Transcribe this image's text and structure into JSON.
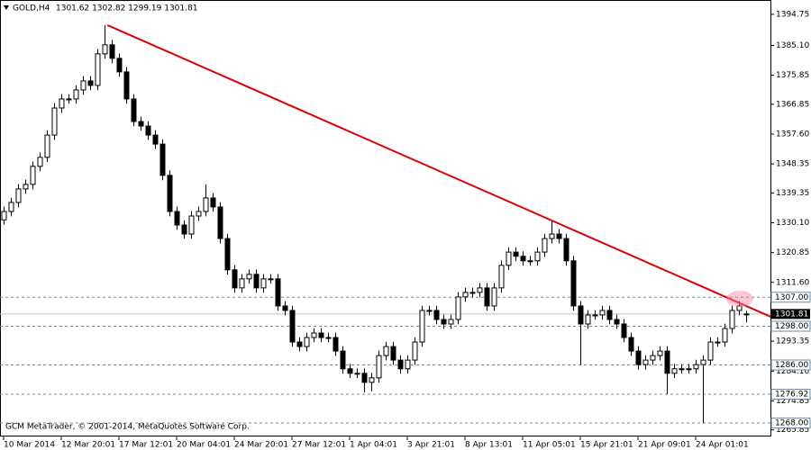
{
  "chart_data": {
    "type": "candlestick",
    "title": "GOLD,H4",
    "subtitle": "1301.62 1302.82 1299.19 1301.81",
    "footer": "GCM MetaTrader, © 2001-2014, MetaQuotes Software Corp.",
    "categories": [
      "10 Mar 2014",
      null,
      null,
      null,
      null,
      null,
      null,
      null,
      "12 Mar 20:01",
      null,
      null,
      null,
      null,
      null,
      null,
      null,
      "17 Mar 12:01",
      null,
      null,
      null,
      null,
      null,
      null,
      null,
      "20 Mar 04:01",
      null,
      null,
      null,
      null,
      null,
      null,
      null,
      "24 Mar 20:01",
      null,
      null,
      null,
      null,
      null,
      null,
      null,
      "27 Mar 12:01",
      null,
      null,
      null,
      null,
      null,
      null,
      null,
      "1 Apr 04:01",
      null,
      null,
      null,
      null,
      null,
      null,
      null,
      "3 Apr 21:01",
      null,
      null,
      null,
      null,
      null,
      null,
      null,
      "8 Apr 13:01",
      null,
      null,
      null,
      null,
      null,
      null,
      null,
      "11 Apr 05:01",
      null,
      null,
      null,
      null,
      null,
      null,
      null,
      "15 Apr 21:01",
      null,
      null,
      null,
      null,
      null,
      null,
      null,
      "21 Apr 09:01",
      null,
      null,
      null,
      null,
      null,
      null,
      null,
      "24 Apr 01:01",
      null,
      null,
      null,
      null,
      null,
      null,
      null
    ],
    "open": [
      1331.0,
      1333.6,
      1336.4,
      1340.6,
      1342.0,
      1347.6,
      1350.4,
      1357.3,
      1365.7,
      1368.5,
      1368.5,
      1371.3,
      1374.1,
      1372.7,
      1382.5,
      1385.3,
      1381.1,
      1376.9,
      1368.5,
      1361.5,
      1360.1,
      1357.3,
      1354.5,
      1344.8,
      1333.6,
      1329.4,
      1326.6,
      1332.2,
      1333.6,
      1337.8,
      1335.0,
      1325.2,
      1315.5,
      1309.9,
      1312.7,
      1314.1,
      1309.9,
      1312.7,
      1312.7,
      1304.3,
      1302.9,
      1293.1,
      1291.7,
      1294.5,
      1295.9,
      1294.5,
      1294.5,
      1290.3,
      1284.8,
      1283.4,
      1283.4,
      1280.6,
      1282.0,
      1288.9,
      1291.7,
      1287.5,
      1284.8,
      1287.5,
      1293.1,
      1302.9,
      1302.9,
      1300.1,
      1298.7,
      1300.1,
      1307.1,
      1308.5,
      1308.5,
      1309.9,
      1304.3,
      1309.9,
      1316.9,
      1321.0,
      1319.7,
      1318.3,
      1318.3,
      1321.0,
      1325.2,
      1326.6,
      1325.2,
      1318.3,
      1304.3,
      1298.7,
      1301.5,
      1301.5,
      1302.9,
      1300.1,
      1298.7,
      1294.5,
      1290.3,
      1286.1,
      1287.5,
      1288.9,
      1290.3,
      1283.4,
      1284.8,
      1284.8,
      1284.8,
      1286.1,
      1287.5,
      1293.1,
      1293.1,
      1297.3,
      1302.9,
      1301.62
    ],
    "high": [
      1335.1,
      1337.9,
      1342.1,
      1343.5,
      1349.1,
      1351.9,
      1358.8,
      1367.2,
      1370.0,
      1370.0,
      1372.8,
      1375.6,
      1375.6,
      1384.0,
      1391.4,
      1386.8,
      1382.6,
      1378.4,
      1370.0,
      1363.0,
      1361.6,
      1358.8,
      1356.0,
      1346.3,
      1335.1,
      1330.9,
      1333.7,
      1335.1,
      1342.0,
      1339.3,
      1336.5,
      1326.7,
      1317.0,
      1314.2,
      1315.6,
      1315.6,
      1314.2,
      1314.2,
      1314.2,
      1305.8,
      1304.4,
      1294.6,
      1296.0,
      1297.4,
      1297.4,
      1296.0,
      1296.0,
      1291.8,
      1286.3,
      1284.9,
      1284.9,
      1283.5,
      1290.4,
      1293.2,
      1293.2,
      1289.0,
      1289.0,
      1294.6,
      1304.4,
      1304.4,
      1304.4,
      1301.6,
      1301.6,
      1308.6,
      1310.0,
      1310.0,
      1311.4,
      1311.4,
      1311.4,
      1318.4,
      1322.5,
      1322.5,
      1321.2,
      1319.8,
      1322.5,
      1326.7,
      1330.5,
      1328.1,
      1326.7,
      1319.8,
      1305.8,
      1303.0,
      1303.0,
      1304.4,
      1304.4,
      1301.6,
      1300.2,
      1296.0,
      1291.8,
      1289.0,
      1290.4,
      1291.8,
      1291.8,
      1286.3,
      1286.3,
      1286.3,
      1287.6,
      1289.0,
      1294.6,
      1294.6,
      1298.8,
      1304.4,
      1305.8,
      1302.82
    ],
    "low": [
      1329.5,
      1332.1,
      1334.9,
      1339.1,
      1340.5,
      1346.1,
      1348.9,
      1355.8,
      1364.2,
      1367.0,
      1367.0,
      1369.8,
      1371.2,
      1371.2,
      1381.0,
      1379.6,
      1375.4,
      1367.0,
      1360.0,
      1358.6,
      1355.8,
      1353.0,
      1343.3,
      1332.1,
      1327.9,
      1325.1,
      1325.1,
      1330.7,
      1332.1,
      1333.5,
      1323.7,
      1314.0,
      1308.4,
      1308.4,
      1311.2,
      1308.4,
      1308.4,
      1311.2,
      1302.8,
      1301.4,
      1291.6,
      1290.2,
      1290.2,
      1293.0,
      1293.0,
      1293.0,
      1288.8,
      1283.3,
      1281.9,
      1281.9,
      1277.5,
      1277.8,
      1280.5,
      1287.4,
      1286.0,
      1283.3,
      1283.3,
      1286.0,
      1291.6,
      1301.4,
      1298.6,
      1297.2,
      1297.2,
      1298.6,
      1305.6,
      1307.0,
      1307.0,
      1302.8,
      1302.8,
      1308.4,
      1315.4,
      1318.2,
      1316.8,
      1316.8,
      1316.8,
      1319.5,
      1323.7,
      1323.7,
      1316.8,
      1302.8,
      1286.0,
      1297.2,
      1300.0,
      1300.0,
      1298.6,
      1297.2,
      1293.0,
      1288.8,
      1284.6,
      1284.6,
      1286.0,
      1287.4,
      1277.0,
      1281.9,
      1283.3,
      1283.3,
      1283.3,
      1268.0,
      1286.0,
      1291.6,
      1291.6,
      1295.8,
      1301.4,
      1299.19
    ],
    "close": [
      1333.6,
      1336.4,
      1340.6,
      1342.0,
      1347.6,
      1350.4,
      1357.3,
      1365.7,
      1368.5,
      1368.5,
      1371.3,
      1374.1,
      1372.7,
      1382.5,
      1385.3,
      1381.1,
      1376.9,
      1368.5,
      1361.5,
      1360.1,
      1357.3,
      1354.5,
      1344.8,
      1333.6,
      1329.4,
      1326.6,
      1332.2,
      1333.6,
      1337.8,
      1335.0,
      1325.2,
      1315.5,
      1309.9,
      1312.7,
      1314.1,
      1309.9,
      1312.7,
      1312.7,
      1304.3,
      1302.9,
      1293.1,
      1291.7,
      1294.5,
      1295.9,
      1294.5,
      1294.5,
      1290.3,
      1284.8,
      1283.4,
      1283.4,
      1280.6,
      1282.0,
      1288.9,
      1291.7,
      1287.5,
      1284.8,
      1287.5,
      1293.1,
      1302.9,
      1302.9,
      1300.1,
      1298.7,
      1300.1,
      1307.1,
      1308.5,
      1308.5,
      1309.9,
      1304.3,
      1309.9,
      1316.9,
      1321.0,
      1319.7,
      1318.3,
      1318.3,
      1321.0,
      1325.2,
      1326.6,
      1325.2,
      1318.3,
      1304.3,
      1298.7,
      1301.5,
      1301.5,
      1302.9,
      1300.1,
      1298.7,
      1294.5,
      1290.3,
      1286.1,
      1287.5,
      1288.9,
      1290.3,
      1283.4,
      1284.8,
      1284.8,
      1284.8,
      1286.1,
      1287.5,
      1293.1,
      1293.1,
      1297.3,
      1302.9,
      1304.3,
      1301.81
    ],
    "color": "#000000",
    "bull_color": "#ffffff",
    "ylim": [
      1263.8,
      1399.2
    ],
    "yticks": [
      1394.75,
      {
        "value": 1385.1,
        "label": "1385.10"
      },
      1375.85,
      1366.85,
      {
        "value": 1357.6,
        "label": "1357.60"
      },
      1348.35,
      1339.35,
      {
        "value": 1330.1,
        "label": "1330.10"
      },
      1320.85,
      {
        "value": 1311.6,
        "label": "1311.60"
      },
      1293.35,
      {
        "value": 1284.1,
        "label": "1284.10"
      },
      1274.85,
      1265.85
    ],
    "levels": [
      {
        "value": 1307.0,
        "label": "1307.00"
      },
      {
        "value": 1298.0,
        "label": "1298.00"
      },
      {
        "value": 1286.0,
        "label": "1286.00"
      },
      {
        "value": 1276.92,
        "label": "1276.92"
      },
      {
        "value": 1268.0,
        "label": "1268.00"
      }
    ],
    "level_color": "#6e8aa6",
    "current_price": 1301.81,
    "trendline": {
      "x": [
        14.4,
        106.4
      ],
      "y": [
        1391.4,
        1300.95
      ],
      "color": "#e00000"
    }
  }
}
